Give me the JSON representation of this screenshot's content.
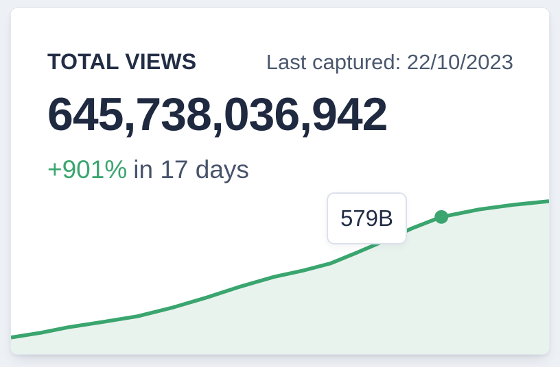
{
  "card": {
    "title": "TOTAL VIEWS",
    "last_captured": "Last captured: 22/10/2023",
    "total_views": "645,738,036,942",
    "delta_percent": "+901%",
    "delta_period": "in 17 days",
    "tooltip_value": "579B"
  },
  "colors": {
    "accent_green": "#3aa56e",
    "area_fill": "#e9f3ee",
    "heading_text": "#222d45",
    "number_text": "#1f2940",
    "muted_text": "#4b586e",
    "page_background": "#edf0f5",
    "card_background": "#ffffff",
    "card_border": "#e3e7ef",
    "tooltip_border": "#dce1ec"
  },
  "chart_data": {
    "type": "area",
    "title": "",
    "xlabel": "",
    "ylabel": "",
    "x_unit": "days",
    "x_range": [
      0,
      17
    ],
    "y_unit": "billions of views",
    "y_range_shown": [
      0,
      735
    ],
    "grid": false,
    "legend": "none",
    "line_color": "#3aa56e",
    "fill_color": "#e9f3ee",
    "points": [
      {
        "day": 0,
        "views_b": 64.5
      },
      {
        "day": 0.95,
        "views_b": 85
      },
      {
        "day": 1.8,
        "views_b": 108
      },
      {
        "day": 2.9,
        "views_b": 131
      },
      {
        "day": 4.0,
        "views_b": 155
      },
      {
        "day": 5.1,
        "views_b": 192
      },
      {
        "day": 6.2,
        "views_b": 236
      },
      {
        "day": 7.2,
        "views_b": 280
      },
      {
        "day": 8.3,
        "views_b": 323
      },
      {
        "day": 9.2,
        "views_b": 349
      },
      {
        "day": 10.1,
        "views_b": 381
      },
      {
        "day": 10.9,
        "views_b": 425
      },
      {
        "day": 11.8,
        "views_b": 477
      },
      {
        "day": 12.7,
        "views_b": 532
      },
      {
        "day": 13.6,
        "views_b": 579
      },
      {
        "day": 14.8,
        "views_b": 611
      },
      {
        "day": 15.9,
        "views_b": 631
      },
      {
        "day": 17,
        "views_b": 646
      }
    ],
    "highlight_point": {
      "day": 13.6,
      "views_b": 579,
      "label": "579B"
    }
  }
}
